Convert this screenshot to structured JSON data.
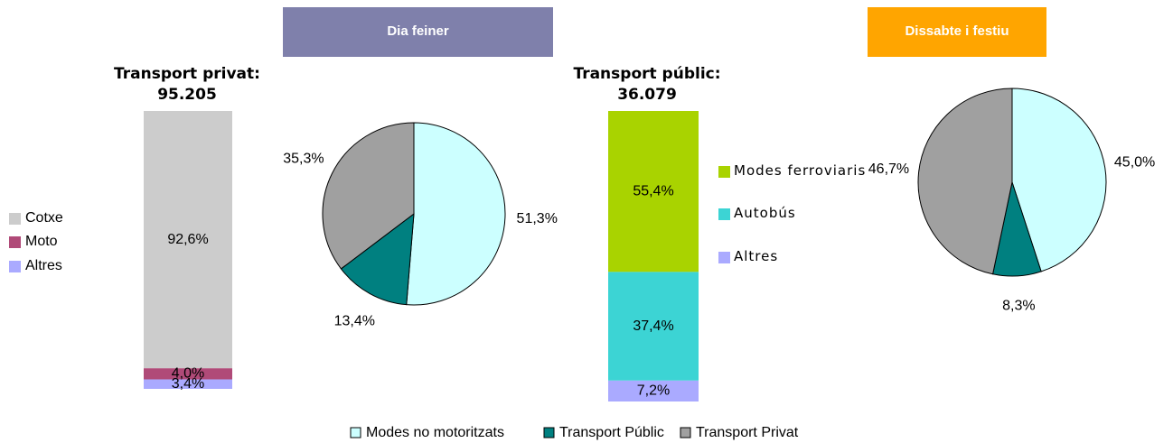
{
  "chart_data": [
    {
      "type": "stacked-bar",
      "title": "Transport privat:",
      "subtitle": "95.205",
      "series": [
        {
          "name": "Cotxe",
          "color": "#cccccc",
          "values": [
            92.6
          ],
          "value_labels": [
            "92,6%"
          ]
        },
        {
          "name": "Moto",
          "color": "#b04a78",
          "values": [
            4.0
          ],
          "value_labels": [
            "4,0%"
          ]
        },
        {
          "name": "Altres",
          "color": "#aaaaff",
          "values": [
            3.4
          ],
          "value_labels": [
            "3,4%"
          ]
        }
      ]
    },
    {
      "type": "pie",
      "title": "Dia feiner",
      "title_color": "#7f80ab",
      "values": [
        51.3,
        13.4,
        35.3
      ],
      "value_labels": [
        "51,3%",
        "13,4%",
        "35,3%"
      ]
    },
    {
      "type": "stacked-bar",
      "title": "Transport públic:",
      "subtitle": "36.079",
      "series": [
        {
          "name": "Modes ferroviaris",
          "color": "#a9d300",
          "values": [
            55.4
          ],
          "value_labels": [
            "55,4%"
          ]
        },
        {
          "name": "Autobús",
          "color": "#3cd4d4",
          "values": [
            37.4
          ],
          "value_labels": [
            "37,4%"
          ]
        },
        {
          "name": "Altres",
          "color": "#aaaaff",
          "values": [
            7.2
          ],
          "value_labels": [
            "7,2%"
          ]
        }
      ]
    },
    {
      "type": "pie",
      "title": "Dissabte i festiu",
      "title_color": "#ffa500",
      "values": [
        45.0,
        8.3,
        46.7
      ],
      "value_labels": [
        "45,0%",
        "8,3%",
        "46,7%"
      ]
    }
  ],
  "legend": {
    "categories": [
      "Modes no motoritzats",
      "Transport Públic",
      "Transport Privat"
    ],
    "colors": [
      "#ccffff",
      "#008080",
      "#a0a0a0"
    ]
  }
}
